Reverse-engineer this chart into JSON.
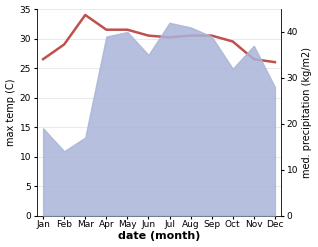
{
  "months": [
    "Jan",
    "Feb",
    "Mar",
    "Apr",
    "May",
    "Jun",
    "Jul",
    "Aug",
    "Sep",
    "Oct",
    "Nov",
    "Dec"
  ],
  "max_temp": [
    26.5,
    29.0,
    34.0,
    31.5,
    31.5,
    30.5,
    30.2,
    30.5,
    30.5,
    29.5,
    26.5,
    26.0
  ],
  "precipitation": [
    19,
    14,
    17,
    39,
    40,
    35,
    42,
    41,
    39,
    32,
    37,
    28
  ],
  "temp_color": "#c0504d",
  "precip_fill_color": "#aab4d8",
  "ylim_temp": [
    0,
    35
  ],
  "ylim_precip": [
    0,
    45
  ],
  "yticks_temp": [
    0,
    5,
    10,
    15,
    20,
    25,
    30,
    35
  ],
  "yticks_precip": [
    0,
    10,
    20,
    30,
    40
  ],
  "xlabel": "date (month)",
  "ylabel_left": "max temp (C)",
  "ylabel_right": "med. precipitation (kg/m2)",
  "background_color": "#ffffff",
  "label_fontsize": 7,
  "tick_fontsize": 6.5,
  "xlabel_fontsize": 8,
  "temp_linewidth": 1.8
}
